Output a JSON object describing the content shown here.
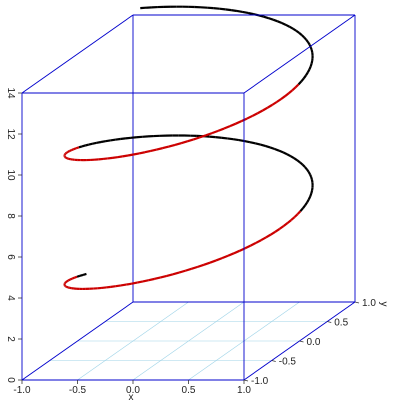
{
  "chart_data": {
    "type": "line3d",
    "title": "",
    "description": "3D helix: x = cos(t), y = sin(t), z = t",
    "axes": {
      "x": {
        "label": "x",
        "ticks": [
          "-1.0",
          "-0.5",
          "0.0",
          "0.5",
          "1.0"
        ]
      },
      "y": {
        "label": "y",
        "ticks": [
          "-1.0",
          "-0.5",
          "0.0",
          "0.5",
          "1.0"
        ]
      },
      "z": {
        "label": "",
        "ticks": [
          "0",
          "2",
          "4",
          "6",
          "8",
          "10",
          "12",
          "14"
        ]
      }
    },
    "ranges": {
      "x": [
        -1,
        1
      ],
      "y": [
        -1,
        1
      ],
      "z": [
        0,
        14
      ]
    },
    "series": [
      {
        "t_start": 3.0,
        "t_end": 15.0,
        "t_step": 0.05,
        "colors": {
          "front": "#cc0000",
          "back": "#000000"
        }
      }
    ],
    "box_color": "#0000cc",
    "floor_grid_color": "#9fd4e8"
  }
}
